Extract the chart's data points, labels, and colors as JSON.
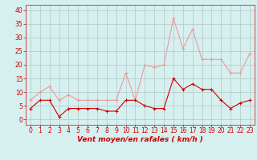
{
  "hours": [
    0,
    1,
    2,
    3,
    4,
    5,
    6,
    7,
    8,
    9,
    10,
    11,
    12,
    13,
    14,
    15,
    16,
    17,
    18,
    19,
    20,
    21,
    22,
    23
  ],
  "wind_avg": [
    4,
    7,
    7,
    1,
    4,
    4,
    4,
    4,
    3,
    3,
    7,
    7,
    5,
    4,
    4,
    15,
    11,
    13,
    11,
    11,
    7,
    4,
    6,
    7
  ],
  "wind_gust": [
    7,
    10,
    12,
    7,
    9,
    7,
    7,
    7,
    7,
    7,
    17,
    7,
    20,
    19,
    20,
    37,
    26,
    33,
    22,
    22,
    22,
    17,
    17,
    24
  ],
  "bg_color": "#d6f0ef",
  "grid_color": "#b0c8c8",
  "line_avg_color": "#cc0000",
  "line_gust_color": "#ee9999",
  "xlabel": "Vent moyen/en rafales ( km/h )",
  "xlabel_color": "#cc0000",
  "tick_color": "#cc0000",
  "ylim": [
    -2,
    42
  ],
  "yticks": [
    0,
    5,
    10,
    15,
    20,
    25,
    30,
    35,
    40
  ],
  "tick_fontsize": 5.5,
  "label_fontsize": 6.5,
  "linewidth": 0.8,
  "markersize": 2.5
}
